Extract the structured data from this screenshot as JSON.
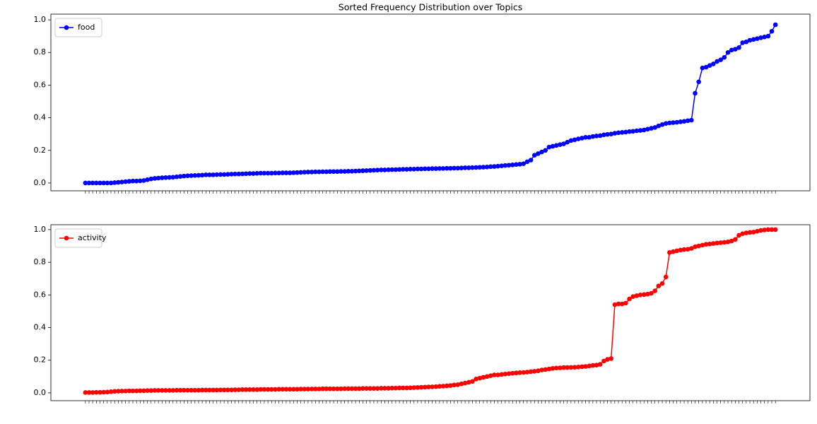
{
  "chart_data": [
    {
      "type": "line",
      "title": "Sorted Frequency Distribution over Topics",
      "legend": "upper left",
      "marker": "circle",
      "ylim": [
        -0.048,
        1.035
      ],
      "yticks": [
        {
          "value": 0,
          "label": "0.0"
        },
        0.2,
        0.4,
        0.6,
        0.8,
        {
          "value": 1,
          "label": "1.0"
        }
      ],
      "series": [
        {
          "name": "food",
          "color": "#0000ff",
          "values": [
            0,
            0,
            0,
            0,
            0,
            0,
            0,
            0,
            0.002,
            0.004,
            0.006,
            0.008,
            0.01,
            0.012,
            0.012,
            0.013,
            0.015,
            0.02,
            0.025,
            0.028,
            0.03,
            0.032,
            0.033,
            0.034,
            0.035,
            0.038,
            0.04,
            0.042,
            0.044,
            0.045,
            0.046,
            0.047,
            0.048,
            0.05,
            0.05,
            0.05,
            0.051,
            0.052,
            0.052,
            0.053,
            0.054,
            0.055,
            0.055,
            0.056,
            0.057,
            0.058,
            0.058,
            0.059,
            0.06,
            0.06,
            0.06,
            0.06,
            0.061,
            0.061,
            0.062,
            0.062,
            0.062,
            0.063,
            0.064,
            0.065,
            0.066,
            0.067,
            0.067,
            0.068,
            0.068,
            0.069,
            0.069,
            0.07,
            0.07,
            0.07,
            0.071,
            0.071,
            0.072,
            0.072,
            0.073,
            0.074,
            0.075,
            0.076,
            0.077,
            0.078,
            0.079,
            0.08,
            0.08,
            0.081,
            0.082,
            0.082,
            0.083,
            0.084,
            0.084,
            0.085,
            0.085,
            0.086,
            0.086,
            0.087,
            0.087,
            0.088,
            0.088,
            0.089,
            0.089,
            0.09,
            0.09,
            0.091,
            0.091,
            0.092,
            0.093,
            0.093,
            0.094,
            0.095,
            0.096,
            0.097,
            0.098,
            0.1,
            0.101,
            0.103,
            0.105,
            0.107,
            0.109,
            0.111,
            0.113,
            0.115,
            0.118,
            0.13,
            0.14,
            0.17,
            0.18,
            0.19,
            0.2,
            0.22,
            0.225,
            0.23,
            0.235,
            0.24,
            0.25,
            0.26,
            0.265,
            0.27,
            0.275,
            0.28,
            0.28,
            0.285,
            0.288,
            0.29,
            0.295,
            0.298,
            0.3,
            0.305,
            0.308,
            0.31,
            0.312,
            0.315,
            0.317,
            0.32,
            0.322,
            0.325,
            0.33,
            0.335,
            0.34,
            0.35,
            0.358,
            0.365,
            0.368,
            0.37,
            0.372,
            0.375,
            0.378,
            0.382,
            0.385,
            0.55,
            0.62,
            0.705,
            0.71,
            0.72,
            0.73,
            0.745,
            0.755,
            0.77,
            0.8,
            0.815,
            0.82,
            0.83,
            0.86,
            0.865,
            0.875,
            0.88,
            0.885,
            0.89,
            0.895,
            0.9,
            0.93,
            0.97
          ]
        }
      ]
    },
    {
      "type": "line",
      "legend": "upper left",
      "marker": "circle",
      "ylim": [
        -0.048,
        1.03
      ],
      "yticks": [
        {
          "value": 0,
          "label": "0.0"
        },
        0.2,
        0.4,
        0.6,
        0.8,
        {
          "value": 1,
          "label": "1.0"
        }
      ],
      "series": [
        {
          "name": "activity",
          "color": "#ff0000",
          "values": [
            0.002,
            0.002,
            0.002,
            0.003,
            0.003,
            0.004,
            0.005,
            0.007,
            0.009,
            0.01,
            0.011,
            0.011,
            0.012,
            0.012,
            0.012,
            0.013,
            0.013,
            0.014,
            0.014,
            0.015,
            0.015,
            0.015,
            0.015,
            0.015,
            0.015,
            0.016,
            0.016,
            0.016,
            0.016,
            0.016,
            0.016,
            0.016,
            0.017,
            0.017,
            0.017,
            0.017,
            0.017,
            0.018,
            0.018,
            0.018,
            0.018,
            0.019,
            0.019,
            0.02,
            0.02,
            0.02,
            0.02,
            0.02,
            0.021,
            0.021,
            0.021,
            0.021,
            0.021,
            0.022,
            0.022,
            0.022,
            0.022,
            0.022,
            0.022,
            0.023,
            0.023,
            0.023,
            0.024,
            0.024,
            0.024,
            0.025,
            0.025,
            0.025,
            0.025,
            0.025,
            0.025,
            0.026,
            0.026,
            0.026,
            0.026,
            0.026,
            0.027,
            0.027,
            0.027,
            0.027,
            0.027,
            0.028,
            0.028,
            0.028,
            0.029,
            0.029,
            0.03,
            0.03,
            0.03,
            0.031,
            0.032,
            0.033,
            0.034,
            0.035,
            0.036,
            0.037,
            0.038,
            0.04,
            0.041,
            0.043,
            0.045,
            0.048,
            0.05,
            0.055,
            0.06,
            0.065,
            0.07,
            0.085,
            0.09,
            0.095,
            0.1,
            0.105,
            0.11,
            0.11,
            0.113,
            0.115,
            0.118,
            0.12,
            0.122,
            0.124,
            0.125,
            0.127,
            0.13,
            0.132,
            0.135,
            0.14,
            0.143,
            0.146,
            0.15,
            0.152,
            0.153,
            0.155,
            0.155,
            0.156,
            0.157,
            0.158,
            0.16,
            0.162,
            0.165,
            0.168,
            0.17,
            0.175,
            0.195,
            0.205,
            0.21,
            0.54,
            0.545,
            0.545,
            0.55,
            0.575,
            0.59,
            0.595,
            0.6,
            0.602,
            0.605,
            0.61,
            0.625,
            0.655,
            0.67,
            0.71,
            0.86,
            0.865,
            0.87,
            0.875,
            0.878,
            0.88,
            0.885,
            0.895,
            0.9,
            0.905,
            0.91,
            0.912,
            0.915,
            0.918,
            0.92,
            0.922,
            0.925,
            0.93,
            0.94,
            0.965,
            0.975,
            0.98,
            0.983,
            0.985,
            0.99,
            0.995,
            0.998,
            1.0,
            1.0,
            1.0
          ]
        }
      ]
    }
  ]
}
